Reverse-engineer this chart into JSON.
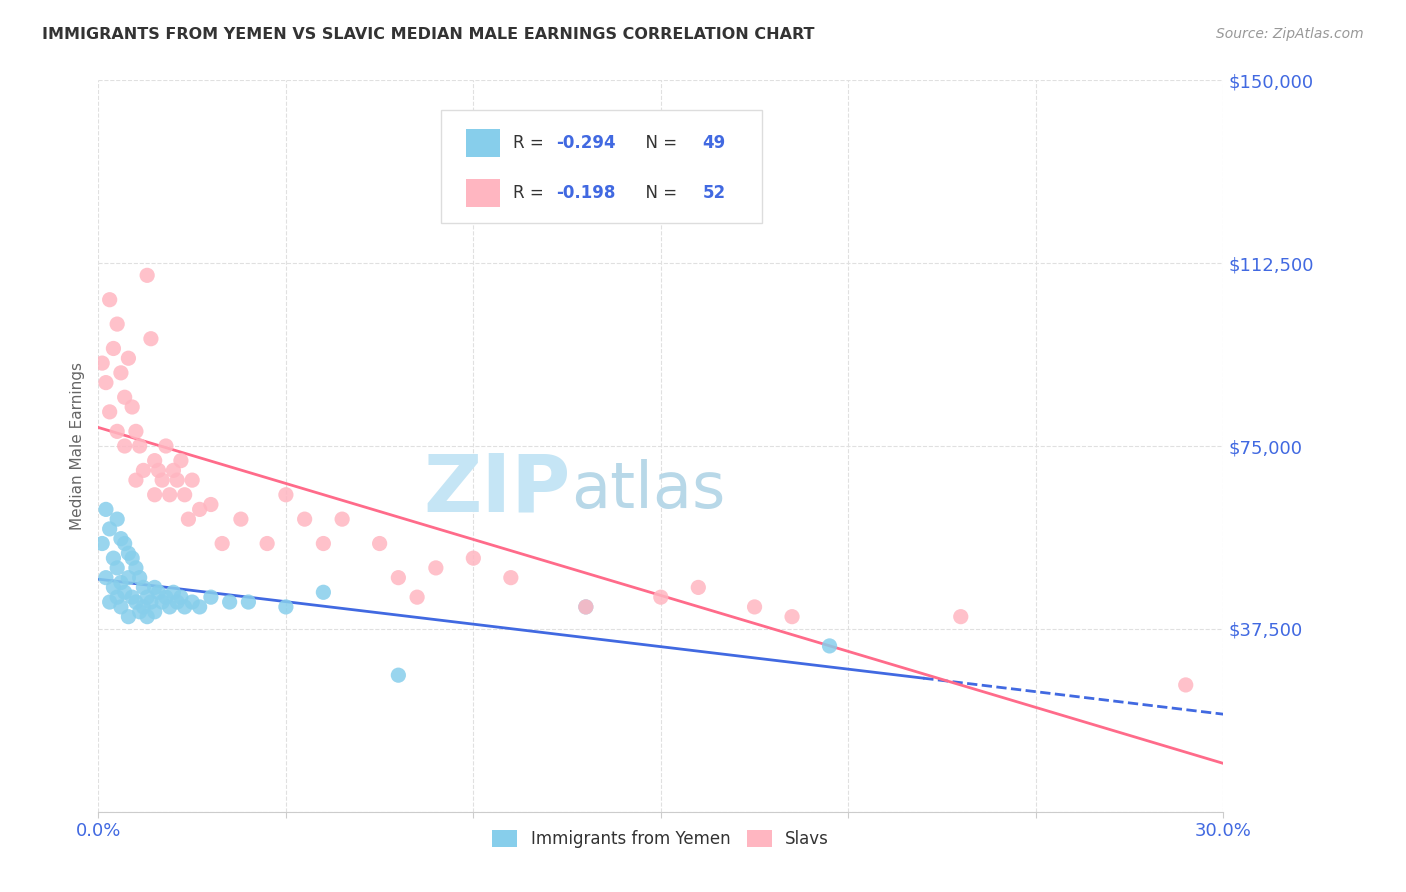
{
  "title": "IMMIGRANTS FROM YEMEN VS SLAVIC MEDIAN MALE EARNINGS CORRELATION CHART",
  "source": "Source: ZipAtlas.com",
  "ylabel": "Median Male Earnings",
  "xlim": [
    0.0,
    0.3
  ],
  "ylim": [
    0,
    150000
  ],
  "yticks": [
    0,
    37500,
    75000,
    112500,
    150000
  ],
  "ytick_labels": [
    "",
    "$37,500",
    "$75,000",
    "$112,500",
    "$150,000"
  ],
  "xticks": [
    0.0,
    0.05,
    0.1,
    0.15,
    0.2,
    0.25,
    0.3
  ],
  "xtick_labels": [
    "0.0%",
    "",
    "",
    "",
    "",
    "",
    "30.0%"
  ],
  "blue_color": "#87CEEB",
  "pink_color": "#FFB6C1",
  "line_blue": "#4169E1",
  "line_pink": "#FF6B8A",
  "title_color": "#333333",
  "axis_label_color": "#4169E1",
  "watermark_zip_color": "#C8E8F5",
  "watermark_atlas_color": "#B0D4E8",
  "background_color": "#FFFFFF",
  "blue_scatter_x": [
    0.001,
    0.002,
    0.002,
    0.003,
    0.003,
    0.004,
    0.004,
    0.005,
    0.005,
    0.005,
    0.006,
    0.006,
    0.006,
    0.007,
    0.007,
    0.008,
    0.008,
    0.008,
    0.009,
    0.009,
    0.01,
    0.01,
    0.011,
    0.011,
    0.012,
    0.012,
    0.013,
    0.013,
    0.014,
    0.015,
    0.015,
    0.016,
    0.017,
    0.018,
    0.019,
    0.02,
    0.021,
    0.022,
    0.023,
    0.025,
    0.027,
    0.03,
    0.035,
    0.04,
    0.05,
    0.06,
    0.08,
    0.13,
    0.195
  ],
  "blue_scatter_y": [
    55000,
    62000,
    48000,
    58000,
    43000,
    52000,
    46000,
    60000,
    50000,
    44000,
    56000,
    47000,
    42000,
    55000,
    45000,
    53000,
    48000,
    40000,
    52000,
    44000,
    50000,
    43000,
    48000,
    41000,
    46000,
    42000,
    44000,
    40000,
    43000,
    46000,
    41000,
    45000,
    43000,
    44000,
    42000,
    45000,
    43000,
    44000,
    42000,
    43000,
    42000,
    44000,
    43000,
    43000,
    42000,
    45000,
    28000,
    42000,
    34000
  ],
  "pink_scatter_x": [
    0.001,
    0.002,
    0.003,
    0.003,
    0.004,
    0.005,
    0.005,
    0.006,
    0.007,
    0.007,
    0.008,
    0.009,
    0.01,
    0.01,
    0.011,
    0.012,
    0.013,
    0.014,
    0.015,
    0.015,
    0.016,
    0.017,
    0.018,
    0.019,
    0.02,
    0.021,
    0.022,
    0.023,
    0.024,
    0.025,
    0.027,
    0.03,
    0.033,
    0.038,
    0.045,
    0.05,
    0.055,
    0.06,
    0.065,
    0.075,
    0.08,
    0.085,
    0.09,
    0.1,
    0.11,
    0.13,
    0.15,
    0.16,
    0.175,
    0.185,
    0.23,
    0.29
  ],
  "pink_scatter_y": [
    92000,
    88000,
    105000,
    82000,
    95000,
    100000,
    78000,
    90000,
    85000,
    75000,
    93000,
    83000,
    78000,
    68000,
    75000,
    70000,
    110000,
    97000,
    72000,
    65000,
    70000,
    68000,
    75000,
    65000,
    70000,
    68000,
    72000,
    65000,
    60000,
    68000,
    62000,
    63000,
    55000,
    60000,
    55000,
    65000,
    60000,
    55000,
    60000,
    55000,
    48000,
    44000,
    50000,
    52000,
    48000,
    42000,
    44000,
    46000,
    42000,
    40000,
    40000,
    26000
  ]
}
